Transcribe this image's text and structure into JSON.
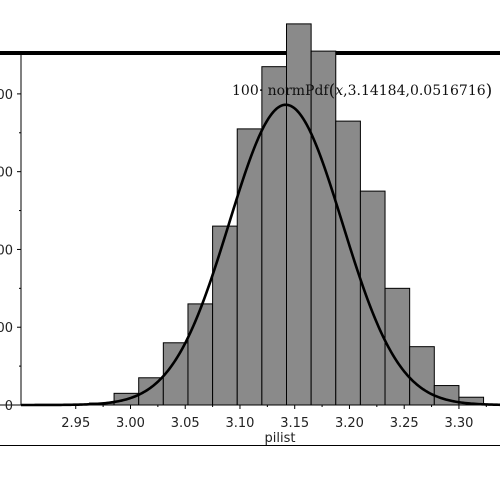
{
  "chart_data": {
    "type": "bar",
    "xlabel": "pilist",
    "ylabel": "",
    "title": "",
    "bin_start": 2.94,
    "bin_width": 0.0225,
    "bins": [
      {
        "x0": 2.9625,
        "x1": 2.985,
        "value": 0.5
      },
      {
        "x0": 2.985,
        "x1": 3.0075,
        "value": 3
      },
      {
        "x0": 3.0075,
        "x1": 3.03,
        "value": 7
      },
      {
        "x0": 3.03,
        "x1": 3.0525,
        "value": 16
      },
      {
        "x0": 3.0525,
        "x1": 3.075,
        "value": 26
      },
      {
        "x0": 3.075,
        "x1": 3.0975,
        "value": 46
      },
      {
        "x0": 3.0975,
        "x1": 3.12,
        "value": 71
      },
      {
        "x0": 3.12,
        "x1": 3.1425,
        "value": 87
      },
      {
        "x0": 3.1425,
        "x1": 3.165,
        "value": 98
      },
      {
        "x0": 3.165,
        "x1": 3.1875,
        "value": 91
      },
      {
        "x0": 3.1875,
        "x1": 3.21,
        "value": 73
      },
      {
        "x0": 3.21,
        "x1": 3.2325,
        "value": 55
      },
      {
        "x0": 3.2325,
        "x1": 3.255,
        "value": 30
      },
      {
        "x0": 3.255,
        "x1": 3.2775,
        "value": 15
      },
      {
        "x0": 3.2775,
        "x1": 3.3,
        "value": 5
      },
      {
        "x0": 3.3,
        "x1": 3.3225,
        "value": 2
      }
    ],
    "x_ticks": [
      "2.95",
      "3.00",
      "3.05",
      "3.10",
      "3.15",
      "3.20",
      "3.25",
      "3.30"
    ],
    "x_tick_values": [
      2.95,
      3.0,
      3.05,
      3.1,
      3.15,
      3.2,
      3.25,
      3.3
    ],
    "y_ticks": [
      0,
      20,
      40,
      60,
      80
    ],
    "y_tick_labels": [
      "0",
      "00",
      "00",
      "00",
      "00"
    ],
    "xlim": [
      2.9,
      3.3375
    ],
    "ylim": [
      0,
      90
    ],
    "curve": {
      "label_prefix": "100· normPdf",
      "label_open": "(",
      "label_var": "x",
      "label_args": ",3.14184,0.0516716",
      "label_close": ")",
      "scale": 100,
      "mean": 3.14184,
      "sd": 0.0516716
    },
    "bar_color": "#8a8a8a",
    "curve_color": "#000000"
  }
}
